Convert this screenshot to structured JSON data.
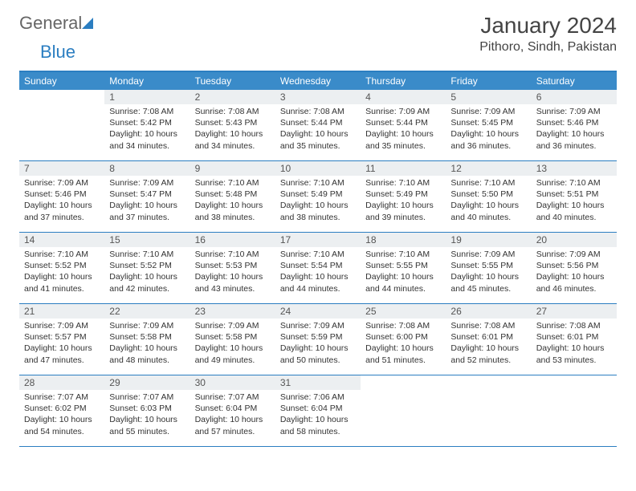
{
  "brand": {
    "part1": "General",
    "part2": "Blue"
  },
  "title": "January 2024",
  "location": "Pithoro, Sindh, Pakistan",
  "colors": {
    "header_bg": "#3a8bc9",
    "header_text": "#ffffff",
    "border": "#2b7ec1",
    "daynum_bg": "#eceff1",
    "text": "#333333"
  },
  "day_headers": [
    "Sunday",
    "Monday",
    "Tuesday",
    "Wednesday",
    "Thursday",
    "Friday",
    "Saturday"
  ],
  "weeks": [
    [
      null,
      {
        "d": "1",
        "sr": "7:08 AM",
        "ss": "5:42 PM",
        "dl": "10 hours and 34 minutes."
      },
      {
        "d": "2",
        "sr": "7:08 AM",
        "ss": "5:43 PM",
        "dl": "10 hours and 34 minutes."
      },
      {
        "d": "3",
        "sr": "7:08 AM",
        "ss": "5:44 PM",
        "dl": "10 hours and 35 minutes."
      },
      {
        "d": "4",
        "sr": "7:09 AM",
        "ss": "5:44 PM",
        "dl": "10 hours and 35 minutes."
      },
      {
        "d": "5",
        "sr": "7:09 AM",
        "ss": "5:45 PM",
        "dl": "10 hours and 36 minutes."
      },
      {
        "d": "6",
        "sr": "7:09 AM",
        "ss": "5:46 PM",
        "dl": "10 hours and 36 minutes."
      }
    ],
    [
      {
        "d": "7",
        "sr": "7:09 AM",
        "ss": "5:46 PM",
        "dl": "10 hours and 37 minutes."
      },
      {
        "d": "8",
        "sr": "7:09 AM",
        "ss": "5:47 PM",
        "dl": "10 hours and 37 minutes."
      },
      {
        "d": "9",
        "sr": "7:10 AM",
        "ss": "5:48 PM",
        "dl": "10 hours and 38 minutes."
      },
      {
        "d": "10",
        "sr": "7:10 AM",
        "ss": "5:49 PM",
        "dl": "10 hours and 38 minutes."
      },
      {
        "d": "11",
        "sr": "7:10 AM",
        "ss": "5:49 PM",
        "dl": "10 hours and 39 minutes."
      },
      {
        "d": "12",
        "sr": "7:10 AM",
        "ss": "5:50 PM",
        "dl": "10 hours and 40 minutes."
      },
      {
        "d": "13",
        "sr": "7:10 AM",
        "ss": "5:51 PM",
        "dl": "10 hours and 40 minutes."
      }
    ],
    [
      {
        "d": "14",
        "sr": "7:10 AM",
        "ss": "5:52 PM",
        "dl": "10 hours and 41 minutes."
      },
      {
        "d": "15",
        "sr": "7:10 AM",
        "ss": "5:52 PM",
        "dl": "10 hours and 42 minutes."
      },
      {
        "d": "16",
        "sr": "7:10 AM",
        "ss": "5:53 PM",
        "dl": "10 hours and 43 minutes."
      },
      {
        "d": "17",
        "sr": "7:10 AM",
        "ss": "5:54 PM",
        "dl": "10 hours and 44 minutes."
      },
      {
        "d": "18",
        "sr": "7:10 AM",
        "ss": "5:55 PM",
        "dl": "10 hours and 44 minutes."
      },
      {
        "d": "19",
        "sr": "7:09 AM",
        "ss": "5:55 PM",
        "dl": "10 hours and 45 minutes."
      },
      {
        "d": "20",
        "sr": "7:09 AM",
        "ss": "5:56 PM",
        "dl": "10 hours and 46 minutes."
      }
    ],
    [
      {
        "d": "21",
        "sr": "7:09 AM",
        "ss": "5:57 PM",
        "dl": "10 hours and 47 minutes."
      },
      {
        "d": "22",
        "sr": "7:09 AM",
        "ss": "5:58 PM",
        "dl": "10 hours and 48 minutes."
      },
      {
        "d": "23",
        "sr": "7:09 AM",
        "ss": "5:58 PM",
        "dl": "10 hours and 49 minutes."
      },
      {
        "d": "24",
        "sr": "7:09 AM",
        "ss": "5:59 PM",
        "dl": "10 hours and 50 minutes."
      },
      {
        "d": "25",
        "sr": "7:08 AM",
        "ss": "6:00 PM",
        "dl": "10 hours and 51 minutes."
      },
      {
        "d": "26",
        "sr": "7:08 AM",
        "ss": "6:01 PM",
        "dl": "10 hours and 52 minutes."
      },
      {
        "d": "27",
        "sr": "7:08 AM",
        "ss": "6:01 PM",
        "dl": "10 hours and 53 minutes."
      }
    ],
    [
      {
        "d": "28",
        "sr": "7:07 AM",
        "ss": "6:02 PM",
        "dl": "10 hours and 54 minutes."
      },
      {
        "d": "29",
        "sr": "7:07 AM",
        "ss": "6:03 PM",
        "dl": "10 hours and 55 minutes."
      },
      {
        "d": "30",
        "sr": "7:07 AM",
        "ss": "6:04 PM",
        "dl": "10 hours and 57 minutes."
      },
      {
        "d": "31",
        "sr": "7:06 AM",
        "ss": "6:04 PM",
        "dl": "10 hours and 58 minutes."
      },
      null,
      null,
      null
    ]
  ],
  "labels": {
    "sunrise": "Sunrise: ",
    "sunset": "Sunset: ",
    "daylight": "Daylight: "
  }
}
